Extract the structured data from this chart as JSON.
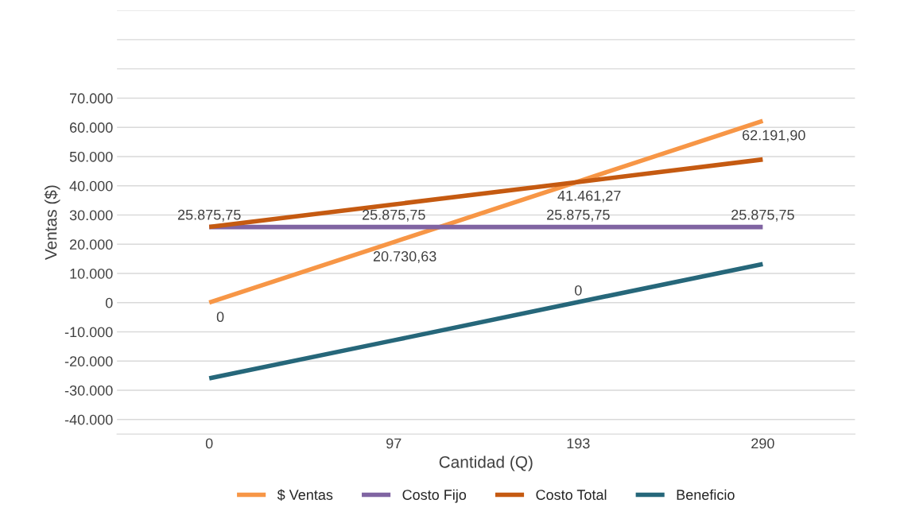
{
  "chart_data": {
    "type": "line",
    "xlabel": "Cantidad (Q)",
    "ylabel": "Ventas ($)",
    "categories": [
      "0",
      "97",
      "193",
      "290"
    ],
    "series": [
      {
        "name": "$ Ventas",
        "color": "#f79646",
        "values": [
          0,
          20730.63,
          41461.27,
          62191.9
        ],
        "value_labels": [
          "0",
          "20.730,63",
          "41.461,27",
          "62.191,90"
        ]
      },
      {
        "name": "Costo Fijo",
        "color": "#8064a2",
        "values": [
          25875.75,
          25875.75,
          25875.75,
          25875.75
        ],
        "value_labels": [
          "25.875,75",
          "25.875,75",
          "25.875,75",
          "25.875,75"
        ]
      },
      {
        "name": "Costo Total",
        "color": "#c55a11",
        "values": [
          25900,
          33600,
          41300,
          49000
        ]
      },
      {
        "name": "Beneficio",
        "color": "#26677a",
        "values": [
          -25900,
          -12900,
          200,
          13200
        ]
      }
    ],
    "annotations": [
      {
        "text": "0",
        "x": "193",
        "y": 0
      }
    ],
    "ylim": [
      -45000,
      100000
    ],
    "yticks": [
      {
        "value": -40000,
        "label": "-40.000"
      },
      {
        "value": -30000,
        "label": "-30.000"
      },
      {
        "value": -20000,
        "label": "-20.000"
      },
      {
        "value": -10000,
        "label": "-10.000"
      },
      0,
      {
        "value": 10000,
        "label": "10.000"
      },
      {
        "value": 20000,
        "label": "20.000"
      },
      {
        "value": 30000,
        "label": "30.000"
      },
      {
        "value": 40000,
        "label": "40.000"
      },
      {
        "value": 50000,
        "label": "50.000"
      },
      {
        "value": 60000,
        "label": "60.000"
      },
      {
        "value": 70000,
        "label": "70.000"
      },
      {
        "value": 80000,
        "label": null
      },
      {
        "value": 90000,
        "label": null
      },
      {
        "value": 100000,
        "label": null
      }
    ],
    "grid": "y",
    "legend": "bottom",
    "line_style": "solid",
    "marker": "none"
  }
}
